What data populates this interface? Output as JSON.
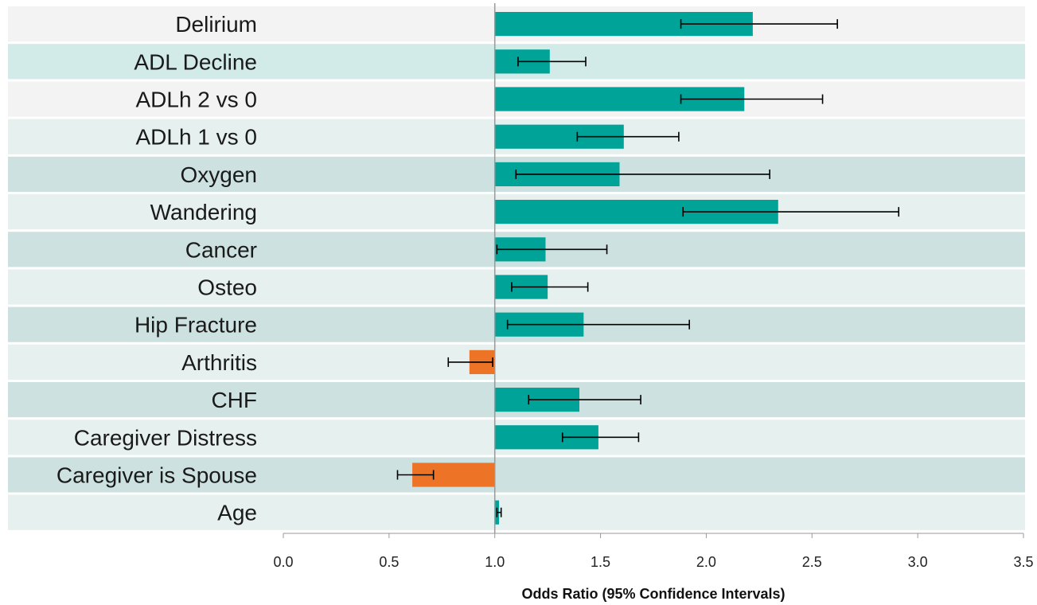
{
  "chart_data": {
    "type": "bar",
    "orientation": "horizontal",
    "title": "",
    "xlabel": "Odds Ratio (95% Confidence Intervals)",
    "ylabel": "",
    "xlim": [
      0,
      3.5
    ],
    "baseline": 1.0,
    "xticks": [
      "0.0",
      "0.5",
      "1.0",
      "1.5",
      "2.0",
      "2.5",
      "3.0",
      "3.5"
    ],
    "xtick_values": [
      0,
      0.5,
      1.0,
      1.5,
      2.0,
      2.5,
      3.0,
      3.5
    ],
    "grid": false,
    "legend": "none",
    "categories": [
      "Delirium",
      "ADL Decline",
      "ADLh 2 vs 0",
      "ADLh 1 vs 0",
      "Oxygen",
      "Wandering",
      "Cancer",
      "Osteo",
      "Hip Fracture",
      "Arthritis",
      "CHF",
      "Caregiver Distress",
      "Caregiver is Spouse",
      "Age"
    ],
    "values": [
      2.22,
      1.26,
      2.18,
      1.61,
      1.59,
      2.34,
      1.24,
      1.25,
      1.42,
      0.88,
      1.4,
      1.49,
      0.61,
      1.02
    ],
    "ci_lower": [
      1.88,
      1.11,
      1.88,
      1.39,
      1.1,
      1.89,
      1.01,
      1.08,
      1.06,
      0.78,
      1.16,
      1.32,
      0.54,
      1.01
    ],
    "ci_upper": [
      2.62,
      1.43,
      2.55,
      1.87,
      2.3,
      2.91,
      1.53,
      1.44,
      1.92,
      0.99,
      1.69,
      1.68,
      0.71,
      1.03
    ],
    "colors": {
      "above_one": "#00a398",
      "below_one": "#ed7327",
      "row_light": "#e5f0ef",
      "row_medium": "#cde2e0",
      "row_top": "#f3f3f3",
      "row_second": "#d3ebe8",
      "error_bar": "#000000",
      "axis": "#999999"
    }
  }
}
